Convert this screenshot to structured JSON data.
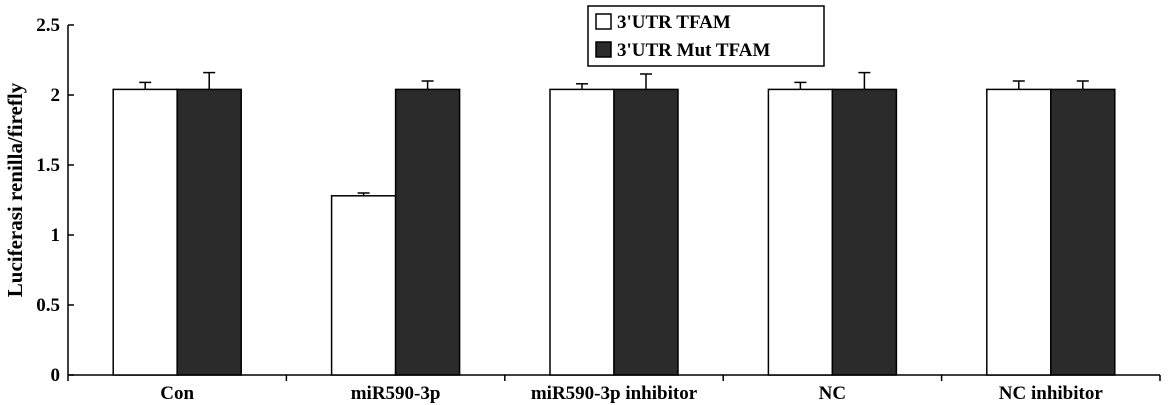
{
  "chart_data": {
    "type": "bar",
    "ylabel": "Luciferasi  renilla/firefly",
    "ylim": [
      0,
      2.5
    ],
    "yticks": [
      "0",
      "0.5",
      "1",
      "1.5",
      "2",
      "2.5"
    ],
    "ytick_values": [
      0,
      0.5,
      1,
      1.5,
      2,
      2.5
    ],
    "categories": [
      "Con",
      "miR590-3p",
      "miR590-3p inhibitor",
      "NC",
      "NC inhibitor"
    ],
    "series": [
      {
        "name": "3'UTR TFAM",
        "color": "#ffffff",
        "values": [
          2.04,
          1.28,
          2.04,
          2.04,
          2.04
        ],
        "errors": [
          0.05,
          0.02,
          0.04,
          0.05,
          0.06
        ]
      },
      {
        "name": "3'UTR Mut TFAM",
        "color": "#2b2b2b",
        "values": [
          2.04,
          2.04,
          2.04,
          2.04,
          2.04
        ],
        "errors": [
          0.12,
          0.06,
          0.11,
          0.12,
          0.06
        ]
      }
    ],
    "legend_position": "top-center",
    "grid": false
  }
}
